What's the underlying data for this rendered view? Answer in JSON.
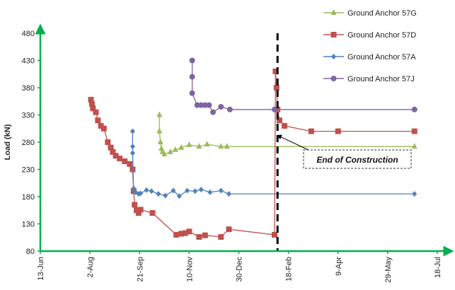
{
  "chart_data": {
    "type": "line",
    "ylabel": "Load (kN)",
    "xlabel": "",
    "ylim": [
      80,
      480
    ],
    "yticks": [
      80,
      130,
      180,
      230,
      280,
      330,
      380,
      430,
      480
    ],
    "xlim": [
      "2022-06-13",
      "2023-07-18"
    ],
    "xticks": [
      {
        "date": "2022-06-13",
        "label": "13-Jun"
      },
      {
        "date": "2022-08-02",
        "label": "2-Aug"
      },
      {
        "date": "2022-09-21",
        "label": "21-Sep"
      },
      {
        "date": "2022-11-10",
        "label": "10-Nov"
      },
      {
        "date": "2022-12-30",
        "label": "30-Dec"
      },
      {
        "date": "2023-02-18",
        "label": "18-Feb"
      },
      {
        "date": "2023-04-09",
        "label": "9-Apr"
      },
      {
        "date": "2023-05-29",
        "label": "29-May"
      },
      {
        "date": "2023-07-18",
        "label": "18-Jul"
      }
    ],
    "grid": false,
    "legend_position": "top-right",
    "annotation": {
      "text": "End of Construction",
      "date": "2023-02-05",
      "value": 295
    },
    "vertical_line_date": "2023-02-07",
    "series": [
      {
        "name": "Ground Anchor 57G",
        "color": "#9bbb59",
        "marker": "triangle",
        "points": [
          [
            "2022-10-11",
            330
          ],
          [
            "2022-10-11",
            300
          ],
          [
            "2022-10-12",
            280
          ],
          [
            "2022-10-13",
            268
          ],
          [
            "2022-10-14",
            262
          ],
          [
            "2022-10-16",
            258
          ],
          [
            "2022-10-22",
            262
          ],
          [
            "2022-10-27",
            266
          ],
          [
            "2022-11-02",
            270
          ],
          [
            "2022-11-10",
            275
          ],
          [
            "2022-11-20",
            272
          ],
          [
            "2022-11-28",
            276
          ],
          [
            "2022-12-12",
            272
          ],
          [
            "2022-12-18",
            272
          ],
          [
            "2023-06-25",
            272
          ]
        ]
      },
      {
        "name": "Ground Anchor 57D",
        "color": "#c0504d",
        "marker": "square",
        "points": [
          [
            "2022-08-03",
            358
          ],
          [
            "2022-08-04",
            350
          ],
          [
            "2022-08-05",
            342
          ],
          [
            "2022-08-08",
            335
          ],
          [
            "2022-08-10",
            320
          ],
          [
            "2022-08-13",
            310
          ],
          [
            "2022-08-16",
            305
          ],
          [
            "2022-08-20",
            280
          ],
          [
            "2022-08-23",
            270
          ],
          [
            "2022-08-25",
            262
          ],
          [
            "2022-08-28",
            255
          ],
          [
            "2022-09-01",
            250
          ],
          [
            "2022-09-06",
            245
          ],
          [
            "2022-09-11",
            240
          ],
          [
            "2022-09-14",
            230
          ],
          [
            "2022-09-15",
            190
          ],
          [
            "2022-09-16",
            165
          ],
          [
            "2022-09-18",
            155
          ],
          [
            "2022-09-20",
            150
          ],
          [
            "2022-09-22",
            156
          ],
          [
            "2022-10-04",
            150
          ],
          [
            "2022-10-28",
            110
          ],
          [
            "2022-11-02",
            112
          ],
          [
            "2022-11-06",
            113
          ],
          [
            "2022-11-10",
            116
          ],
          [
            "2022-11-20",
            106
          ],
          [
            "2022-11-26",
            109
          ],
          [
            "2022-12-12",
            106
          ],
          [
            "2022-12-20",
            120
          ],
          [
            "2023-02-04",
            110
          ],
          [
            "2023-02-05",
            410
          ],
          [
            "2023-02-06",
            380
          ],
          [
            "2023-02-07",
            340
          ],
          [
            "2023-02-09",
            320
          ],
          [
            "2023-02-14",
            310
          ],
          [
            "2023-03-13",
            300
          ],
          [
            "2023-04-09",
            300
          ],
          [
            "2023-06-25",
            300
          ]
        ]
      },
      {
        "name": "Ground Anchor 57A",
        "color": "#4f81bd",
        "marker": "diamond",
        "points": [
          [
            "2022-09-14",
            300
          ],
          [
            "2022-09-14",
            272
          ],
          [
            "2022-09-14",
            260
          ],
          [
            "2022-09-15",
            195
          ],
          [
            "2022-09-17",
            188
          ],
          [
            "2022-09-20",
            185
          ],
          [
            "2022-09-22",
            186
          ],
          [
            "2022-09-28",
            192
          ],
          [
            "2022-10-03",
            190
          ],
          [
            "2022-10-10",
            185
          ],
          [
            "2022-10-17",
            182
          ],
          [
            "2022-10-25",
            191
          ],
          [
            "2022-10-31",
            181
          ],
          [
            "2022-11-08",
            191
          ],
          [
            "2022-11-16",
            190
          ],
          [
            "2022-11-22",
            193
          ],
          [
            "2022-12-01",
            188
          ],
          [
            "2022-12-12",
            191
          ],
          [
            "2022-12-20",
            185
          ],
          [
            "2023-06-25",
            185
          ]
        ]
      },
      {
        "name": "Ground Anchor 57J",
        "color": "#8064a2",
        "marker": "circle",
        "points": [
          [
            "2022-11-13",
            430
          ],
          [
            "2022-11-13",
            400
          ],
          [
            "2022-11-13",
            370
          ],
          [
            "2022-11-18",
            348
          ],
          [
            "2022-11-22",
            348
          ],
          [
            "2022-11-26",
            348
          ],
          [
            "2022-11-30",
            348
          ],
          [
            "2022-12-04",
            335
          ],
          [
            "2022-12-12",
            345
          ],
          [
            "2022-12-21",
            340
          ],
          [
            "2023-02-04",
            340
          ],
          [
            "2023-06-25",
            340
          ]
        ]
      }
    ]
  }
}
